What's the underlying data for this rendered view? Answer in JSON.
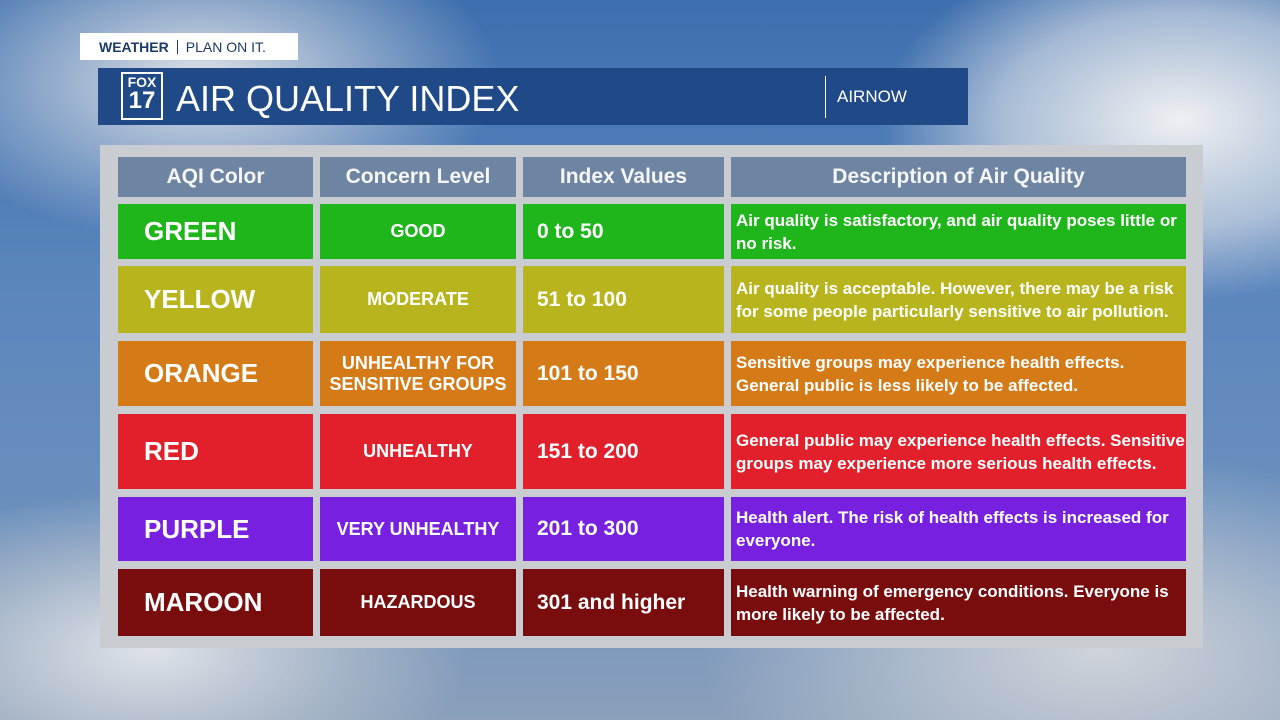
{
  "header": {
    "tag": "WEATHER",
    "tagline": "PLAN ON IT.",
    "logo_top": "FOX",
    "logo_bottom": "17",
    "title": "AIR QUALITY INDEX",
    "source": "AIRNOW"
  },
  "table": {
    "columns": [
      "AQI Color",
      "Concern Level",
      "Index Values",
      "Description of Air Quality"
    ],
    "rows": [
      {
        "color_name": "GREEN",
        "concern": "GOOD",
        "index": "0 to 50",
        "description": "Air quality is satisfactory, and air quality poses little or no risk.",
        "color": "#1eb61b"
      },
      {
        "color_name": "YELLOW",
        "concern": "MODERATE",
        "index": "51 to 100",
        "description": "Air quality is acceptable. However, there may be a risk for some people particularly sensitive to air pollution.",
        "color": "#b8b41d"
      },
      {
        "color_name": "ORANGE",
        "concern": "UNHEALTHY FOR SENSITIVE GROUPS",
        "index": "101 to 150",
        "description": "Sensitive groups may experience health effects. General public is less likely to be affected.",
        "color": "#d47a16"
      },
      {
        "color_name": "RED",
        "concern": "UNHEALTHY",
        "index": "151 to 200",
        "description": "General public may experience health effects. Sensitive groups may experience more serious health effects.",
        "color": "#e2202b"
      },
      {
        "color_name": "PURPLE",
        "concern": "VERY UNHEALTHY",
        "index": "201 to 300",
        "description": "Health alert. The risk of health effects is increased for everyone.",
        "color": "#7820df"
      },
      {
        "color_name": "MAROON",
        "concern": "HAZARDOUS",
        "index": "301 and higher",
        "description": "Health warning of emergency conditions. Everyone is more likely to be affected.",
        "color": "#790d0e"
      }
    ]
  }
}
